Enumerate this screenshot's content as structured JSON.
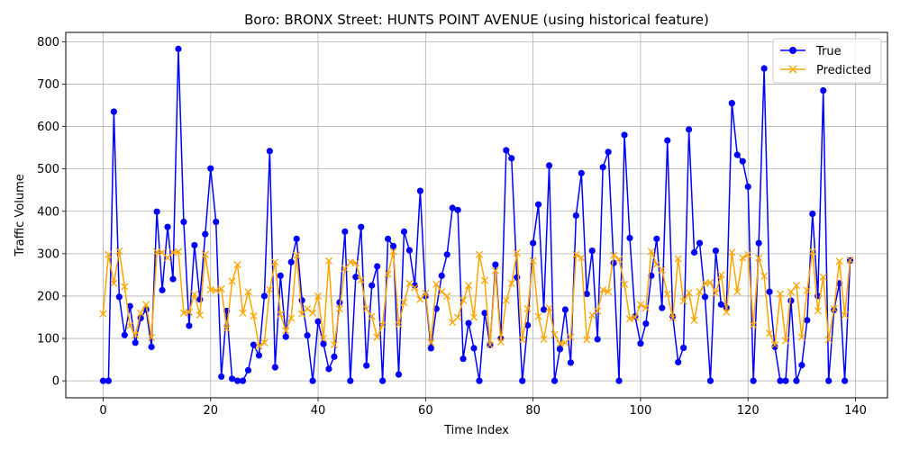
{
  "chart_data": {
    "type": "line",
    "title": "Boro: BRONX Street: HUNTS POINT AVENUE (using historical feature)",
    "xlabel": "Time Index",
    "ylabel": "Traffic Volume",
    "xlim": [
      -6.95,
      145.95
    ],
    "ylim": [
      -40,
      822
    ],
    "xticks": [
      0,
      20,
      40,
      60,
      80,
      100,
      120,
      140
    ],
    "yticks": [
      0,
      100,
      200,
      300,
      400,
      500,
      600,
      700,
      800
    ],
    "grid": true,
    "legend_position": "top-right",
    "series": [
      {
        "name": "True",
        "color": "#0000ff",
        "marker": "circle",
        "values": [
          0,
          0,
          635,
          198,
          108,
          176,
          90,
          148,
          168,
          80,
          399,
          214,
          363,
          240,
          783,
          375,
          130,
          320,
          192,
          346,
          501,
          375,
          10,
          165,
          5,
          0,
          0,
          25,
          85,
          60,
          200,
          542,
          32,
          248,
          104,
          280,
          335,
          190,
          107,
          0,
          140,
          87,
          28,
          57,
          185,
          352,
          0,
          245,
          363,
          36,
          225,
          270,
          0,
          335,
          318,
          15,
          352,
          308,
          225,
          448,
          200,
          77,
          170,
          248,
          298,
          408,
          403,
          52,
          136,
          77,
          0,
          160,
          85,
          274,
          100,
          544,
          525,
          244,
          0,
          131,
          325,
          416,
          168,
          508,
          0,
          75,
          168,
          43,
          390,
          490,
          205,
          307,
          98,
          504,
          540,
          278,
          0,
          580,
          337,
          152,
          88,
          135,
          248,
          335,
          172,
          567,
          152,
          44,
          78,
          593,
          303,
          325,
          198,
          0,
          307,
          180,
          172,
          655,
          533,
          518,
          458,
          0,
          325,
          737,
          210,
          80,
          0,
          0,
          189,
          0,
          37,
          143,
          394,
          200,
          685,
          0,
          167,
          230,
          0,
          284
        ]
      },
      {
        "name": "Predicted",
        "color": "#ffa500",
        "marker": "x",
        "values": [
          158,
          298,
          230,
          306,
          222,
          130,
          108,
          160,
          180,
          102,
          304,
          303,
          290,
          303,
          305,
          160,
          162,
          204,
          155,
          298,
          215,
          213,
          217,
          123,
          235,
          274,
          160,
          210,
          153,
          82,
          90,
          215,
          280,
          157,
          118,
          148,
          296,
          158,
          170,
          160,
          200,
          100,
          283,
          85,
          170,
          265,
          280,
          278,
          238,
          170,
          152,
          103,
          132,
          252,
          305,
          133,
          185,
          230,
          220,
          192,
          207,
          90,
          228,
          210,
          200,
          138,
          150,
          190,
          225,
          150,
          298,
          237,
          85,
          260,
          92,
          190,
          230,
          302,
          97,
          170,
          283,
          152,
          98,
          172,
          109,
          88,
          90,
          103,
          298,
          290,
          97,
          155,
          165,
          215,
          210,
          296,
          287,
          228,
          146,
          150,
          180,
          172,
          305,
          275,
          262,
          205,
          148,
          288,
          188,
          208,
          143,
          210,
          230,
          232,
          207,
          250,
          162,
          303,
          210,
          290,
          298,
          132,
          290,
          247,
          112,
          85,
          205,
          95,
          210,
          225,
          103,
          213,
          305,
          165,
          245,
          97,
          170,
          282,
          155,
          285
        ]
      }
    ]
  }
}
